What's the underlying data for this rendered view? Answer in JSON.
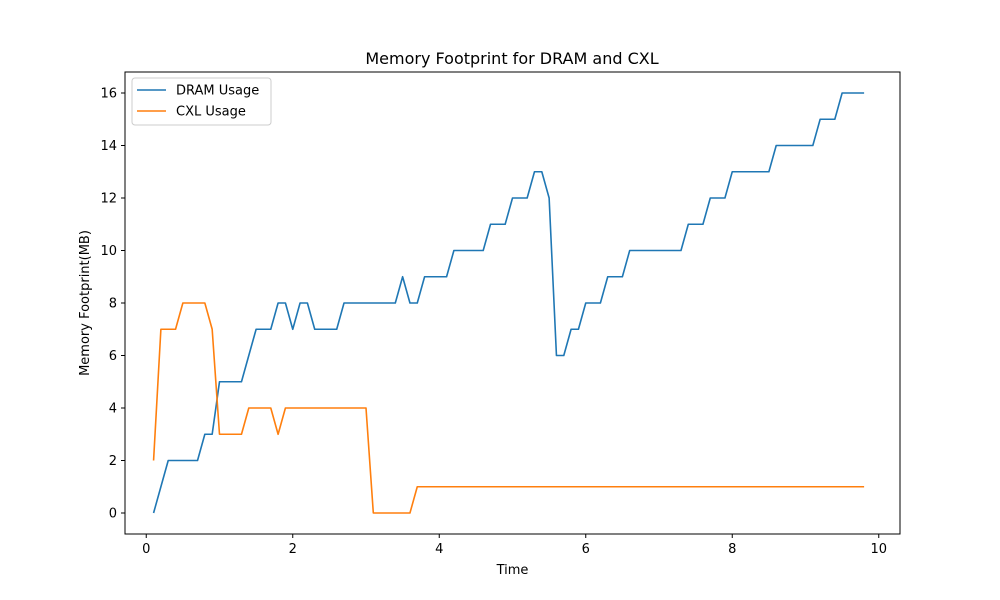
{
  "chart_data": {
    "type": "line",
    "title": "Memory Footprint for DRAM and CXL",
    "xlabel": "Time",
    "ylabel": "Memory Footprint(MB)",
    "xlim": [
      -0.29,
      10.29
    ],
    "ylim": [
      -0.8,
      16.8
    ],
    "xticks": [
      0,
      2,
      4,
      6,
      8,
      10
    ],
    "yticks": [
      0,
      2,
      4,
      6,
      8,
      10,
      12,
      14,
      16
    ],
    "grid": false,
    "legend_position": "top-left",
    "x": [
      0.1,
      0.2,
      0.3,
      0.4,
      0.5,
      0.6,
      0.7,
      0.8,
      0.9,
      1.0,
      1.1,
      1.2,
      1.3,
      1.4,
      1.5,
      1.6,
      1.7,
      1.8,
      1.9,
      2.0,
      2.1,
      2.2,
      2.3,
      2.4,
      2.5,
      2.6,
      2.7,
      2.8,
      2.9,
      3.0,
      3.1,
      3.2,
      3.3,
      3.4,
      3.5,
      3.6,
      3.7,
      3.8,
      3.9,
      4.0,
      4.1,
      4.2,
      4.3,
      4.4,
      4.5,
      4.6,
      4.7,
      4.8,
      4.9,
      5.0,
      5.1,
      5.2,
      5.3,
      5.4,
      5.5,
      5.6,
      5.7,
      5.8,
      5.9,
      6.0,
      6.1,
      6.2,
      6.3,
      6.4,
      6.5,
      6.6,
      6.7,
      6.8,
      6.9,
      7.0,
      7.1,
      7.2,
      7.3,
      7.4,
      7.5,
      7.6,
      7.7,
      7.8,
      7.9,
      8.0,
      8.1,
      8.2,
      8.3,
      8.4,
      8.5,
      8.6,
      8.7,
      8.8,
      8.9,
      9.0,
      9.1,
      9.2,
      9.3,
      9.4,
      9.5,
      9.6,
      9.7,
      9.8
    ],
    "series": [
      {
        "name": "DRAM Usage",
        "color": "#1f77b4",
        "values": [
          0,
          1,
          2,
          2,
          2,
          2,
          2,
          3,
          3,
          5,
          5,
          5,
          5,
          6,
          7,
          7,
          7,
          8,
          8,
          7,
          8,
          8,
          7,
          7,
          7,
          7,
          8,
          8,
          8,
          8,
          8,
          8,
          8,
          8,
          9,
          8,
          8,
          9,
          9,
          9,
          9,
          10,
          10,
          10,
          10,
          10,
          11,
          11,
          11,
          12,
          12,
          12,
          13,
          13,
          12,
          6,
          6,
          7,
          7,
          8,
          8,
          8,
          9,
          9,
          9,
          10,
          10,
          10,
          10,
          10,
          10,
          10,
          10,
          11,
          11,
          11,
          12,
          12,
          12,
          13,
          13,
          13,
          13,
          13,
          13,
          14,
          14,
          14,
          14,
          14,
          14,
          15,
          15,
          15,
          16,
          16,
          16,
          16
        ]
      },
      {
        "name": "CXL Usage",
        "color": "#ff7f0e",
        "values": [
          2,
          7,
          7,
          7,
          8,
          8,
          8,
          8,
          7,
          3,
          3,
          3,
          3,
          4,
          4,
          4,
          4,
          3,
          4,
          4,
          4,
          4,
          4,
          4,
          4,
          4,
          4,
          4,
          4,
          4,
          0,
          0,
          0,
          0,
          0,
          0,
          1,
          1,
          1,
          1,
          1,
          1,
          1,
          1,
          1,
          1,
          1,
          1,
          1,
          1,
          1,
          1,
          1,
          1,
          1,
          1,
          1,
          1,
          1,
          1,
          1,
          1,
          1,
          1,
          1,
          1,
          1,
          1,
          1,
          1,
          1,
          1,
          1,
          1,
          1,
          1,
          1,
          1,
          1,
          1,
          1,
          1,
          1,
          1,
          1,
          1,
          1,
          1,
          1,
          1,
          1,
          1,
          1,
          1,
          1,
          1,
          1,
          1
        ]
      }
    ]
  }
}
